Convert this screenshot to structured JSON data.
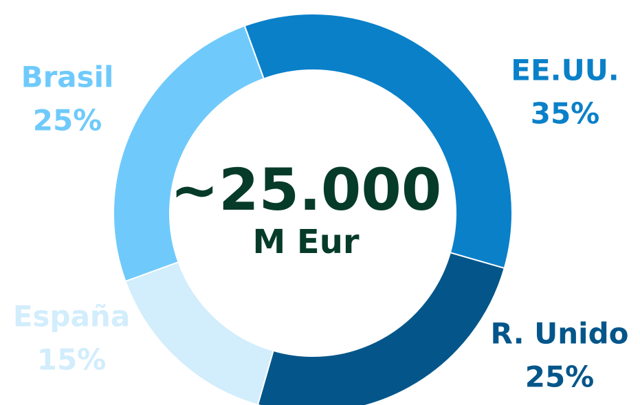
{
  "chart_data": {
    "type": "donut",
    "center_label": [
      "~25.000",
      "M Eur"
    ],
    "categories": [
      "EE.UU.",
      "R. Unido",
      "España",
      "Brasil"
    ],
    "values": [
      35,
      25,
      15,
      25
    ],
    "value_labels": [
      "35%",
      "25%",
      "15%",
      "25%"
    ],
    "colors": [
      "#0a80c9",
      "#04568a",
      "#d2edfc",
      "#6fcafb"
    ],
    "center_color": "#063b29"
  }
}
